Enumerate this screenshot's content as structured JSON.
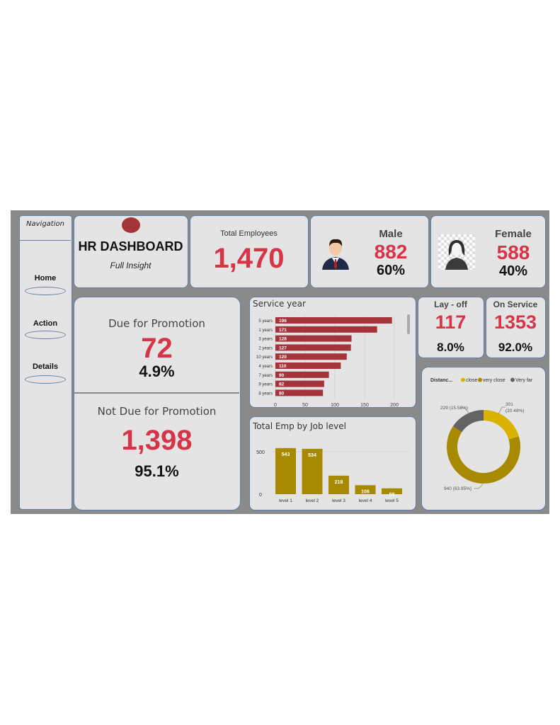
{
  "nav": {
    "title": "Navigation",
    "items": [
      {
        "label": "Home"
      },
      {
        "label": "Action"
      },
      {
        "label": "Details"
      }
    ]
  },
  "header": {
    "title": "HR DASHBOARD",
    "subtitle": "Full Insight"
  },
  "total": {
    "label": "Total Employees",
    "value": "1,470"
  },
  "male": {
    "label": "Male",
    "count": "882",
    "pct": "60%",
    "icon": "male-user-icon"
  },
  "female": {
    "label": "Female",
    "count": "588",
    "pct": "40%",
    "icon": "female-user-icon"
  },
  "promo": {
    "due_label": "Due for Promotion",
    "due_value": "72",
    "due_pct": "4.9%",
    "notdue_label": "Not Due for Promotion",
    "notdue_value": "1,398",
    "notdue_pct": "95.1%"
  },
  "layoff": {
    "label": "Lay - off",
    "value": "117",
    "pct": "8.0%"
  },
  "onservice": {
    "label": "On Service",
    "value": "1353",
    "pct": "92.0%"
  },
  "colors": {
    "accent_red": "#d63447",
    "bar_red": "#a4343a",
    "gold": "#a88a00",
    "gold_light": "#d9b300",
    "grey": "#636363"
  },
  "chart_data": [
    {
      "type": "bar",
      "orientation": "horizontal",
      "title": "Service year",
      "categories": [
        "5 years",
        "1 years",
        "3 years",
        "2 years",
        "10 years",
        "4 years",
        "7 years",
        "9 years",
        "8 years"
      ],
      "values": [
        196,
        171,
        128,
        127,
        120,
        110,
        90,
        82,
        80
      ],
      "xlim": [
        0,
        200
      ],
      "xticks": [
        0,
        50,
        100,
        150,
        200
      ],
      "grid": true
    },
    {
      "type": "bar",
      "title": "Total Emp by Job level",
      "categories": [
        "level 1",
        "level 2",
        "level 3",
        "level 4",
        "level 5"
      ],
      "values": [
        543,
        534,
        218,
        106,
        69
      ],
      "yticks": [
        0,
        500
      ]
    },
    {
      "type": "pie",
      "variant": "donut",
      "title": "Distanc...",
      "legend": [
        "close",
        "very close",
        "Very far"
      ],
      "series": [
        {
          "name": "close",
          "value": 301,
          "label": "301 (20.48%)",
          "color": "#d9b300"
        },
        {
          "name": "very close",
          "value": 940,
          "label": "940 (63.95%)",
          "color": "#a88a00"
        },
        {
          "name": "Very far",
          "value": 229,
          "label": "229 (15.58%)",
          "color": "#636363"
        }
      ]
    }
  ]
}
